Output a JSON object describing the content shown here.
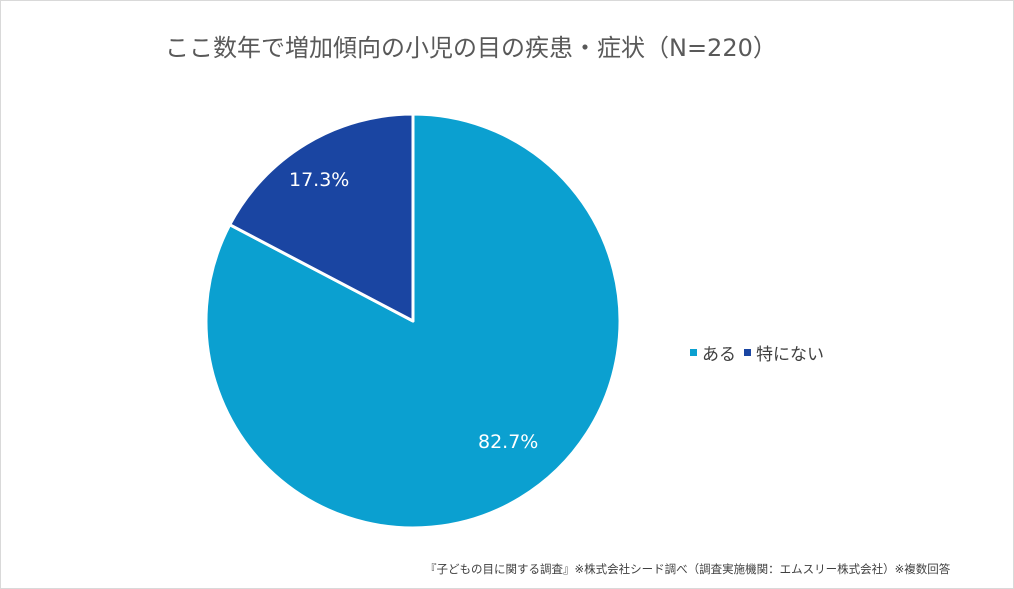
{
  "chart_data": {
    "type": "pie",
    "title": "ここ数年で増加傾向の小児の目の疾患・症状（N=220）",
    "categories": [
      "ある",
      "特にない"
    ],
    "values": [
      82.7,
      17.3
    ],
    "labels": [
      "82.7%",
      "17.3%"
    ],
    "colors": [
      "#0ba0d0",
      "#1a45a2"
    ],
    "legend_position": "right",
    "start_angle_deg": 0,
    "direction": "clockwise"
  },
  "header": {
    "title": "ここ数年で増加傾向の小児の目の疾患・症状（N=220）"
  },
  "legend": {
    "items": [
      {
        "label": "ある",
        "color": "#0ba0d0"
      },
      {
        "label": "特にない",
        "color": "#1a45a2"
      }
    ]
  },
  "footer": {
    "note": "『子どもの目に関する調査』※株式会社シード調べ（調査実施機関：エムスリー株式会社）※複数回答"
  }
}
